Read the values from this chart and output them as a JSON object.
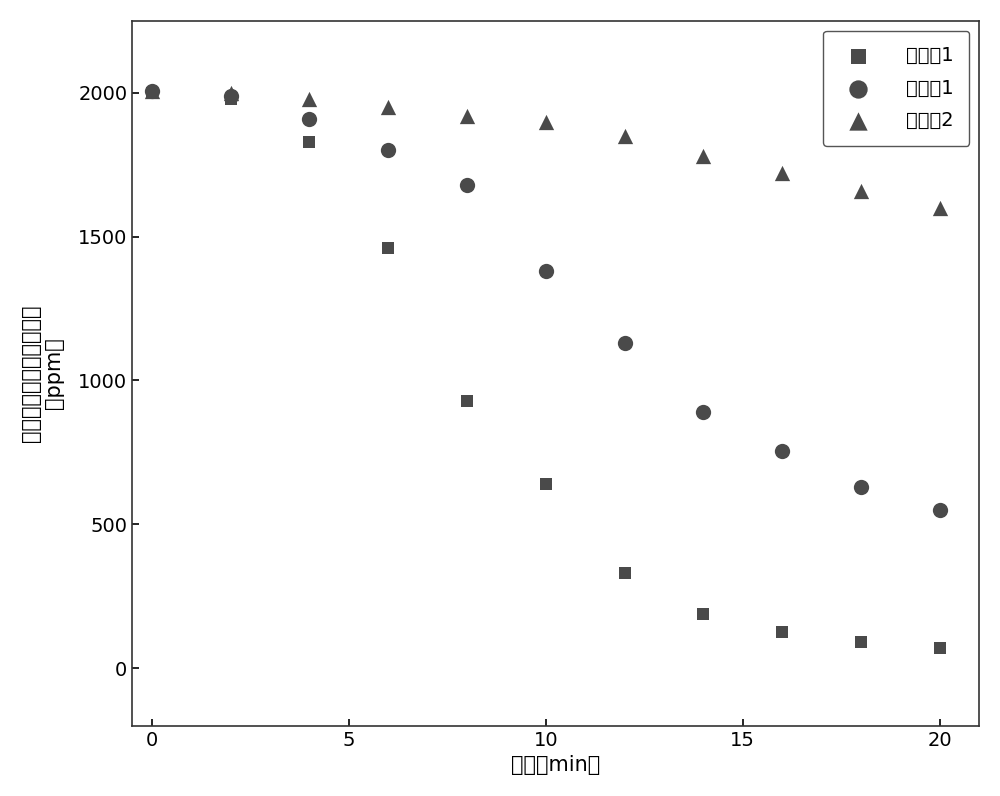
{
  "series": {
    "实施例1": {
      "x": [
        0,
        2,
        4,
        6,
        8,
        10,
        12,
        14,
        16,
        18,
        20
      ],
      "y": [
        2000,
        1980,
        1830,
        1460,
        930,
        640,
        330,
        190,
        125,
        90,
        70
      ],
      "marker": "s",
      "color": "#4a4a4a",
      "markersize": 9
    },
    "对比例1": {
      "x": [
        0,
        2,
        4,
        6,
        8,
        10,
        12,
        14,
        16,
        18,
        20
      ],
      "y": [
        2005,
        1990,
        1910,
        1800,
        1680,
        1380,
        1130,
        890,
        755,
        630,
        550
      ],
      "marker": "o",
      "color": "#4a4a4a",
      "markersize": 11
    },
    "对比例2": {
      "x": [
        0,
        2,
        4,
        6,
        8,
        10,
        12,
        14,
        16,
        18,
        20
      ],
      "y": [
        2005,
        2000,
        1980,
        1950,
        1920,
        1900,
        1850,
        1780,
        1720,
        1660,
        1600
      ],
      "marker": "^",
      "color": "#4a4a4a",
      "markersize": 11
    }
  },
  "xlabel": "时间（min）",
  "ylabel_line1": "多环芳香多环芳香烃浓度",
  "ylabel_line2": "（ppm）",
  "xlim": [
    -0.5,
    21
  ],
  "ylim": [
    -200,
    2250
  ],
  "xticks": [
    0,
    5,
    10,
    15,
    20
  ],
  "yticks": [
    0,
    500,
    1000,
    1500,
    2000
  ],
  "legend_loc": "upper right",
  "background_color": "#ffffff",
  "marker_color": "#4a4a4a",
  "label_fontsize": 15,
  "tick_fontsize": 14,
  "legend_fontsize": 14
}
